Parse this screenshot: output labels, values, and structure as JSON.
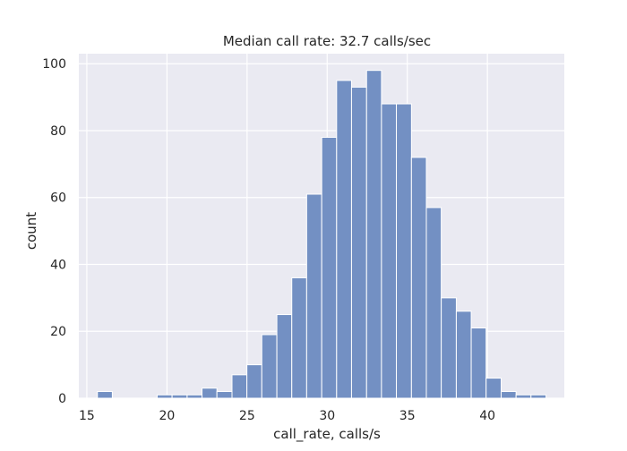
{
  "chart_data": {
    "type": "bar",
    "title": "Median call rate: 32.7 calls/sec",
    "xlabel": "call_rate, calls/s",
    "ylabel": "count",
    "xlim": [
      14.5,
      44.8
    ],
    "ylim": [
      0,
      103
    ],
    "xticks": [
      15,
      20,
      25,
      30,
      35,
      40
    ],
    "yticks": [
      0,
      20,
      40,
      60,
      80,
      100
    ],
    "grid": true,
    "bin_width": 0.933,
    "bins": [
      {
        "x0": 15.66,
        "x1": 16.59,
        "count": 2
      },
      {
        "x0": 16.59,
        "x1": 17.52,
        "count": 0
      },
      {
        "x0": 17.52,
        "x1": 18.46,
        "count": 0
      },
      {
        "x0": 18.46,
        "x1": 19.39,
        "count": 0
      },
      {
        "x0": 19.39,
        "x1": 20.32,
        "count": 1
      },
      {
        "x0": 20.32,
        "x1": 21.26,
        "count": 1
      },
      {
        "x0": 21.26,
        "x1": 22.19,
        "count": 1
      },
      {
        "x0": 22.19,
        "x1": 23.12,
        "count": 3
      },
      {
        "x0": 23.12,
        "x1": 24.06,
        "count": 2
      },
      {
        "x0": 24.06,
        "x1": 24.99,
        "count": 7
      },
      {
        "x0": 24.99,
        "x1": 25.92,
        "count": 10
      },
      {
        "x0": 25.92,
        "x1": 26.86,
        "count": 19
      },
      {
        "x0": 26.86,
        "x1": 27.79,
        "count": 25
      },
      {
        "x0": 27.79,
        "x1": 28.72,
        "count": 36
      },
      {
        "x0": 28.72,
        "x1": 29.66,
        "count": 61
      },
      {
        "x0": 29.66,
        "x1": 30.59,
        "count": 78
      },
      {
        "x0": 30.59,
        "x1": 31.52,
        "count": 95
      },
      {
        "x0": 31.52,
        "x1": 32.46,
        "count": 93
      },
      {
        "x0": 32.46,
        "x1": 33.39,
        "count": 98
      },
      {
        "x0": 33.39,
        "x1": 34.32,
        "count": 88
      },
      {
        "x0": 34.32,
        "x1": 35.26,
        "count": 88
      },
      {
        "x0": 35.26,
        "x1": 36.19,
        "count": 72
      },
      {
        "x0": 36.19,
        "x1": 37.12,
        "count": 57
      },
      {
        "x0": 37.12,
        "x1": 38.06,
        "count": 30
      },
      {
        "x0": 38.06,
        "x1": 38.99,
        "count": 26
      },
      {
        "x0": 38.99,
        "x1": 39.92,
        "count": 21
      },
      {
        "x0": 39.92,
        "x1": 40.86,
        "count": 6
      },
      {
        "x0": 40.86,
        "x1": 41.79,
        "count": 2
      },
      {
        "x0": 41.79,
        "x1": 42.72,
        "count": 1
      },
      {
        "x0": 42.72,
        "x1": 43.66,
        "count": 1
      }
    ],
    "colors": {
      "bar_fill": "#7390c3",
      "bar_edge": "#ffffff",
      "plot_background": "#eaeaf2",
      "grid": "#ffffff",
      "text": "#262626"
    }
  }
}
